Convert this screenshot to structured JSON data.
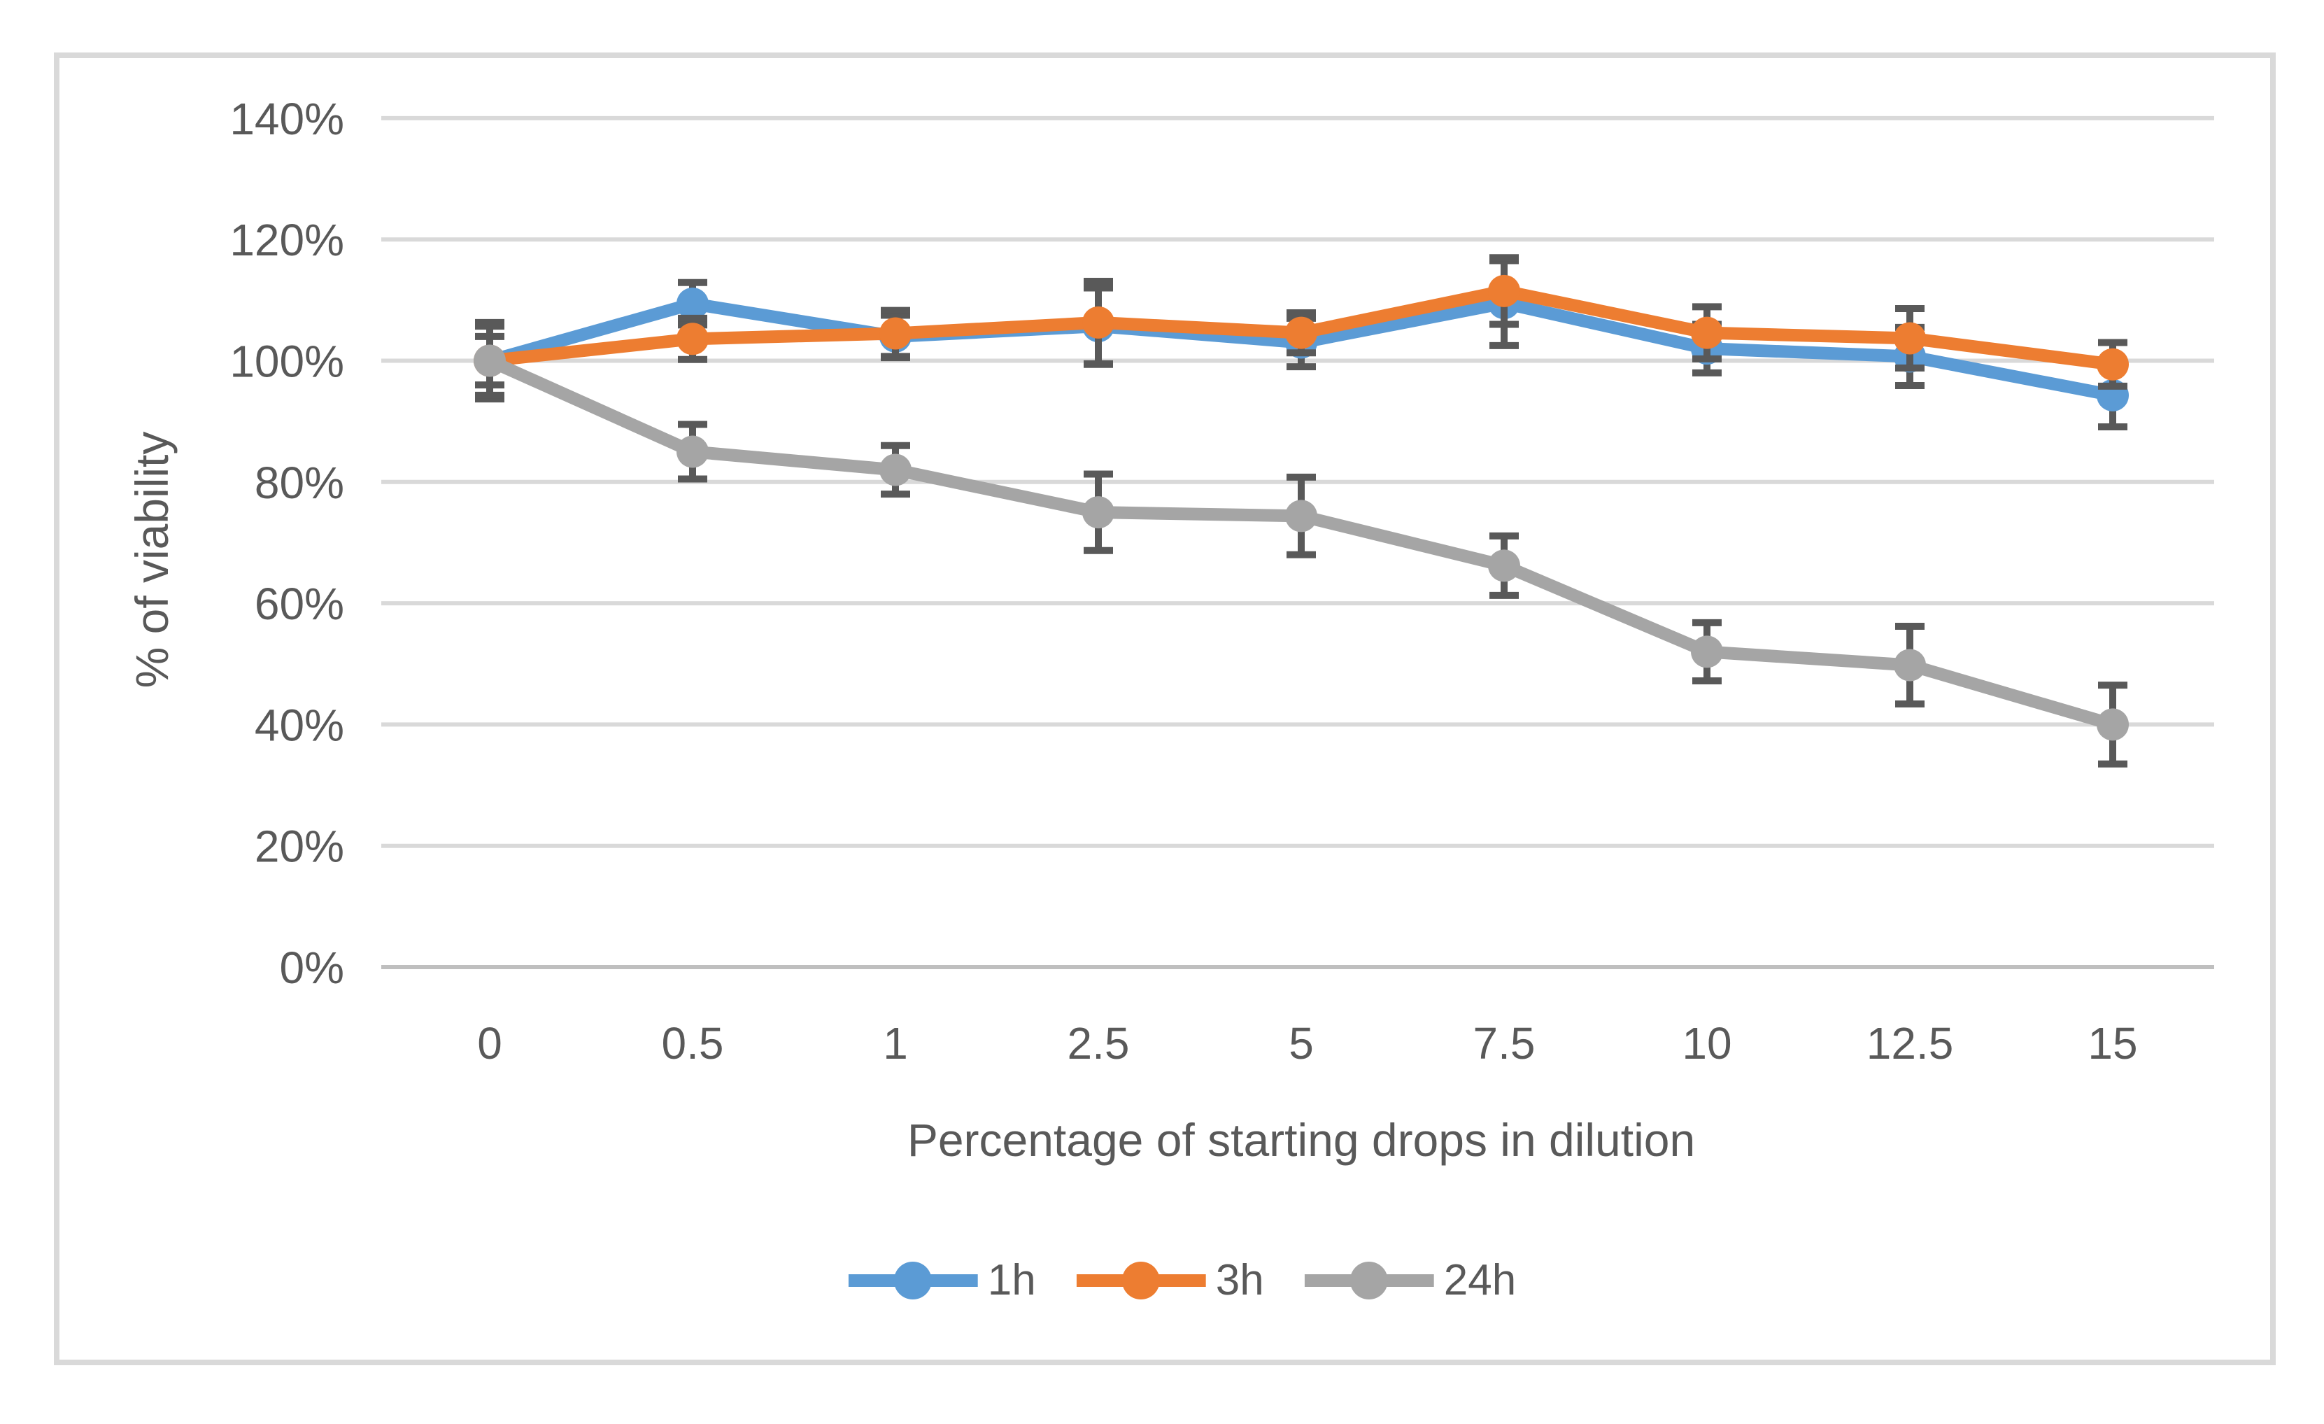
{
  "chart_data": {
    "type": "line",
    "title": "",
    "xlabel": "Percentage of starting drops in dilution",
    "ylabel": "% of viability",
    "categories": [
      "0",
      "0.5",
      "1",
      "2.5",
      "5",
      "7.5",
      "10",
      "12.5",
      "15"
    ],
    "y_ticks": [
      "0%",
      "20%",
      "40%",
      "60%",
      "80%",
      "100%",
      "120%",
      "140%"
    ],
    "ylim": [
      0,
      140
    ],
    "y_tick_step": 20,
    "grid": true,
    "legend_position": "bottom",
    "marker": "circle",
    "error_bars": true,
    "series": [
      {
        "name": "1h",
        "color": "#5B9BD5",
        "values": [
          100,
          109.4,
          104,
          105.7,
          103,
          109.5,
          102,
          100.7,
          94.3
        ],
        "errors": [
          6.3,
          3.5,
          3.5,
          6.3,
          4,
          7,
          4,
          4.8,
          5.2
        ]
      },
      {
        "name": "3h",
        "color": "#ED7D31",
        "values": [
          100,
          103.6,
          104.5,
          106.3,
          104.6,
          111.5,
          104.6,
          103.7,
          99.4
        ],
        "errors": [
          4,
          3.4,
          3.8,
          6.8,
          3.3,
          5.5,
          4.3,
          4.9,
          3.6
        ]
      },
      {
        "name": "24h",
        "color": "#A5A5A5",
        "values": [
          100,
          85,
          82,
          75,
          74.4,
          66.2,
          52,
          49.8,
          40
        ],
        "errors": [
          5.7,
          4.5,
          4,
          6.3,
          6.4,
          4.9,
          4.8,
          6.4,
          6.5
        ]
      }
    ],
    "colors": {
      "gridline": "#D9D9D9",
      "axis_line": "#BFBFBF",
      "error_bar": "#595959",
      "text": "#595959",
      "figure_border": "#D9D9D9",
      "background": "#FFFFFF"
    }
  }
}
